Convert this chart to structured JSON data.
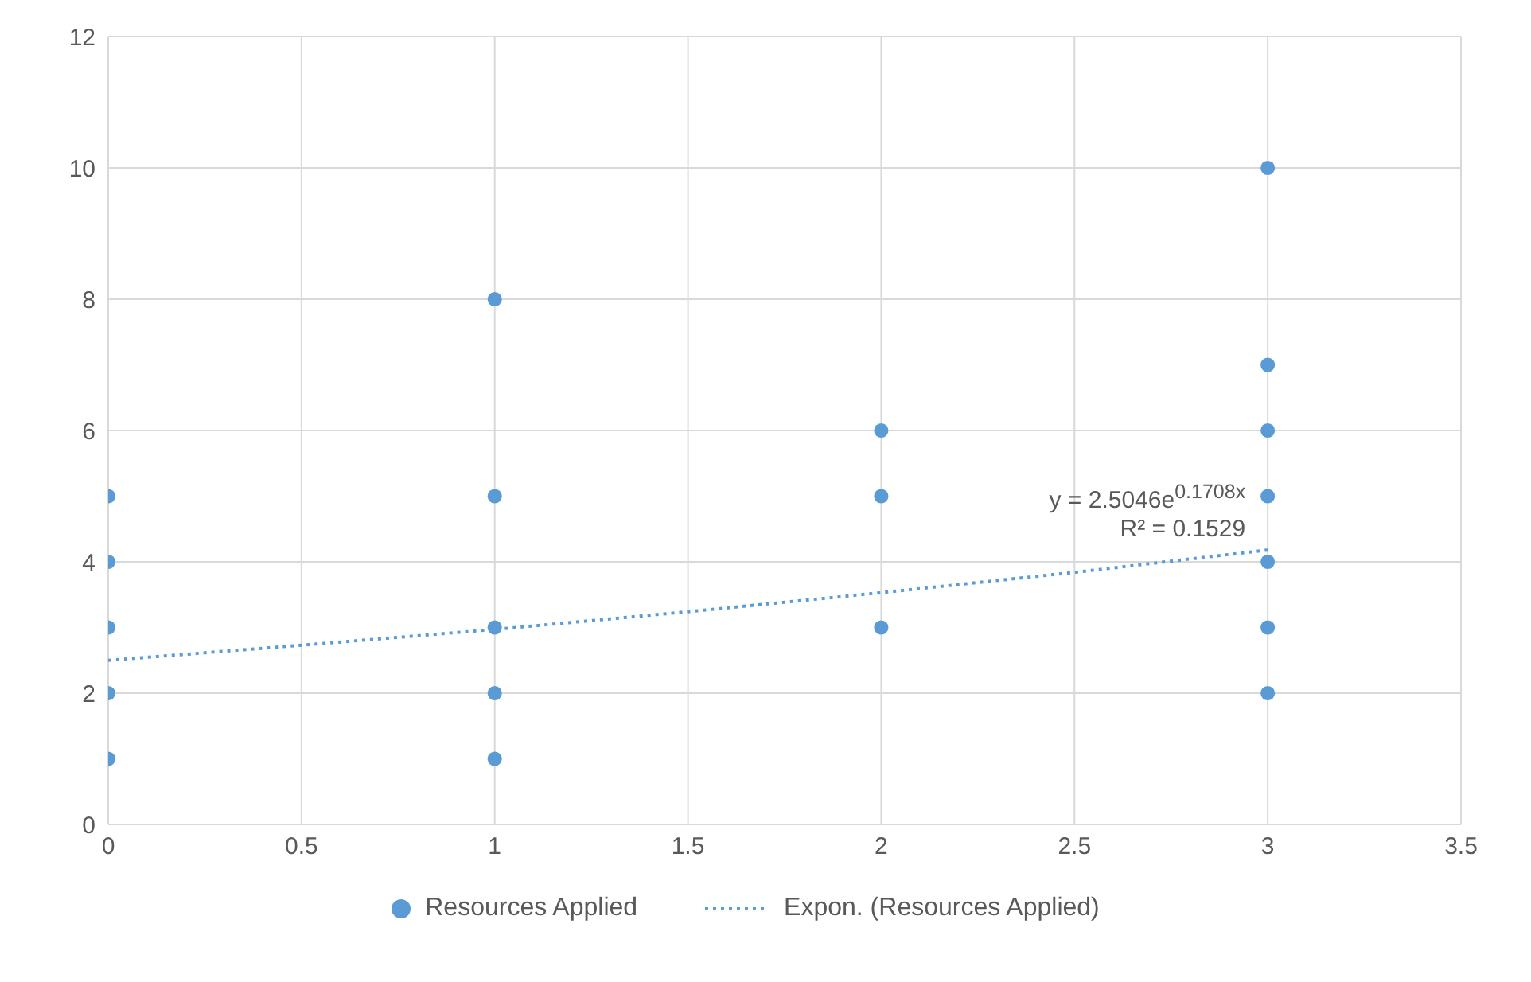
{
  "chart_data": {
    "type": "scatter",
    "xlim": [
      0,
      3.5
    ],
    "xticks": [
      0,
      0.5,
      1,
      1.5,
      2,
      2.5,
      3,
      3.5
    ],
    "ylim": [
      0,
      12
    ],
    "yticks": [
      0,
      2,
      4,
      6,
      8,
      10,
      12
    ],
    "grid": true,
    "legend": "bottom",
    "series": [
      {
        "name": "Resources Applied",
        "color": "#5b9bd5",
        "marker": "circle",
        "x": [
          0,
          0,
          0,
          0,
          0,
          1,
          1,
          1,
          1,
          1,
          2,
          2,
          2,
          3,
          3,
          3,
          3,
          3,
          3,
          3
        ],
        "values": [
          1,
          2,
          3,
          4,
          5,
          1,
          2,
          3,
          5,
          8,
          3,
          5,
          6,
          2,
          3,
          4,
          5,
          6,
          7,
          10
        ]
      },
      {
        "name": "Expon. (Resources Applied)",
        "type": "line",
        "color": "#5b9bd5",
        "marker": "none",
        "line_style": "dotted",
        "x": [
          0,
          0.5,
          1,
          1.5,
          2,
          2.5,
          3
        ],
        "values": [
          2.5,
          2.73,
          2.97,
          3.24,
          3.53,
          3.84,
          4.18
        ]
      }
    ],
    "annotations": [
      "y = 2.5046e$^{0.1708x}$",
      "R² = 0.1529"
    ]
  }
}
